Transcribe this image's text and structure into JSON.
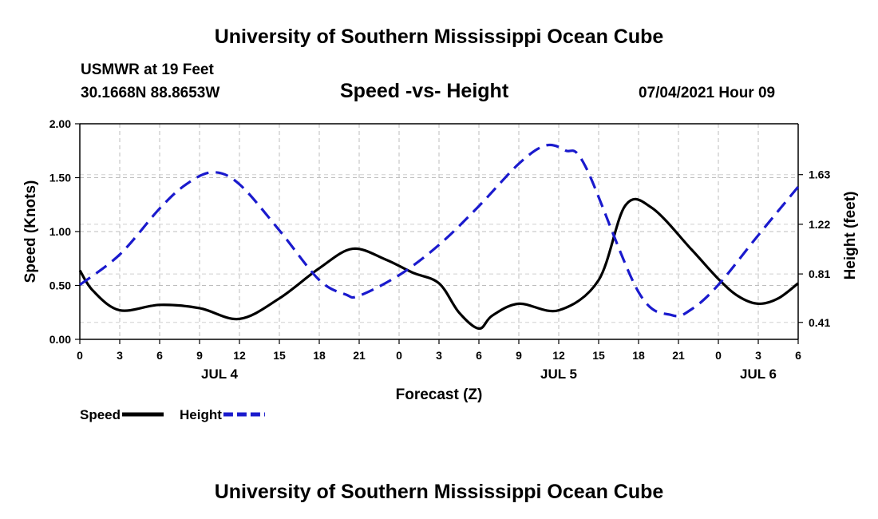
{
  "page": {
    "top_title": "University of Southern Mississippi Ocean Cube",
    "bottom_title": "University of Southern Mississippi Ocean Cube",
    "station": "USMWR at 19 Feet",
    "coords": "30.1668N  88.8653W",
    "date": "07/04/2021 Hour 09"
  },
  "chart_data": {
    "type": "line",
    "title": "Speed -vs- Height",
    "xlabel": "Forecast (Z)",
    "ylabel": "Speed (Knots)",
    "y2label": "Height (feet)",
    "x_range": [
      0,
      54
    ],
    "ylim": [
      0,
      2.0
    ],
    "y2lim": [
      0.27,
      2.05
    ],
    "x_ticks": [
      0,
      3,
      6,
      9,
      12,
      15,
      18,
      21,
      24,
      27,
      30,
      33,
      36,
      39,
      42,
      45,
      48,
      51,
      54
    ],
    "x_tick_labels": [
      "0",
      "3",
      "6",
      "9",
      "12",
      "15",
      "18",
      "21",
      "0",
      "3",
      "6",
      "9",
      "12",
      "15",
      "18",
      "21",
      "0",
      "3",
      "6"
    ],
    "day_labels": [
      {
        "x": 10.5,
        "label": "JUL 4"
      },
      {
        "x": 36,
        "label": "JUL 5"
      },
      {
        "x": 51,
        "label": "JUL 6"
      }
    ],
    "y_ticks": [
      0,
      0.5,
      1.0,
      1.5,
      2.0
    ],
    "y_tick_labels": [
      "0.00",
      "0.50",
      "1.00",
      "1.50",
      "2.00"
    ],
    "y2_ticks": [
      0.41,
      0.81,
      1.22,
      1.63
    ],
    "y2_tick_labels": [
      "0.41",
      "0.81",
      "1.22",
      "1.63"
    ],
    "grid": true,
    "series": [
      {
        "name": "Speed",
        "axis": "left",
        "color": "#000000",
        "style": "solid",
        "x": [
          0,
          1,
          3,
          6,
          9,
          12,
          15,
          18,
          20.5,
          23,
          25,
          27,
          28.5,
          30,
          31,
          33,
          36,
          39,
          41,
          43,
          46,
          48,
          49.5,
          51,
          52.5,
          54
        ],
        "values": [
          0.64,
          0.45,
          0.27,
          0.32,
          0.29,
          0.19,
          0.38,
          0.66,
          0.84,
          0.74,
          0.62,
          0.52,
          0.25,
          0.1,
          0.22,
          0.33,
          0.27,
          0.55,
          1.24,
          1.22,
          0.83,
          0.56,
          0.4,
          0.33,
          0.38,
          0.52
        ]
      },
      {
        "name": "Height",
        "axis": "right",
        "color": "#1a1acd",
        "style": "dashed",
        "x": [
          0,
          3,
          6,
          8,
          10,
          12,
          15,
          18,
          20,
          21,
          24,
          27,
          30,
          33,
          35,
          36.5,
          38,
          42,
          44.5,
          46,
          48,
          51,
          54
        ],
        "values": [
          0.72,
          0.97,
          1.35,
          1.55,
          1.65,
          1.55,
          1.17,
          0.76,
          0.64,
          0.63,
          0.8,
          1.05,
          1.37,
          1.72,
          1.87,
          1.83,
          1.7,
          0.66,
          0.47,
          0.52,
          0.72,
          1.13,
          1.53
        ]
      }
    ],
    "legend": [
      {
        "label": "Speed",
        "color": "#000000",
        "style": "solid"
      },
      {
        "label": "Height",
        "color": "#1a1acd",
        "style": "dashed"
      }
    ],
    "legend_position": "bottom-left"
  }
}
